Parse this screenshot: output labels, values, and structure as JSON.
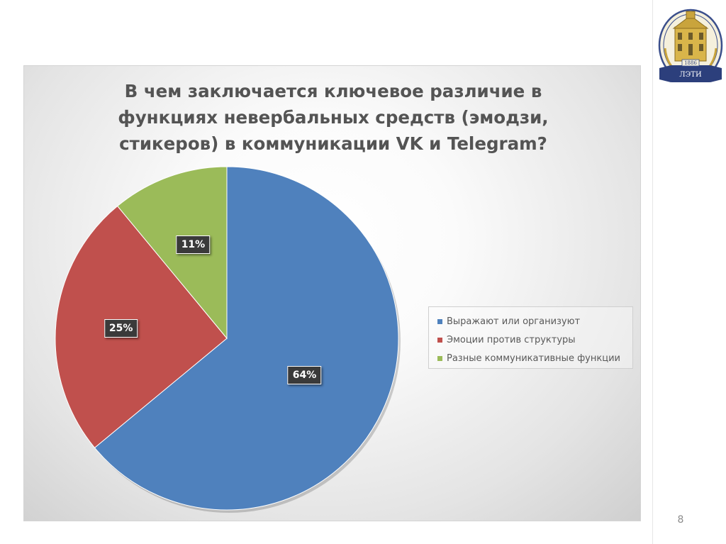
{
  "slide": {
    "page_number": "8"
  },
  "logo": {
    "year": "1886",
    "name": "ЛЭТИ"
  },
  "chart_data": {
    "type": "pie",
    "title": "В чем заключается ключевое различие в функциях невербальных средств (эмодзи, стикеров) в коммуникации VK и Telegram?",
    "categories": [
      "Выражают или организуют",
      "Эмоции против структуры",
      "Разные коммуникативные функции"
    ],
    "values": [
      64,
      25,
      11
    ],
    "data_labels": [
      "64%",
      "25%",
      "11%"
    ],
    "colors": [
      "#4f81bd",
      "#c0504d",
      "#9bbb59"
    ],
    "start_angle_deg": 0,
    "direction": "clockwise",
    "legend_position": "right"
  },
  "legend": {
    "items": [
      {
        "label": "Выражают или организуют",
        "color": "#4f81bd"
      },
      {
        "label": "Эмоции против структуры",
        "color": "#c0504d"
      },
      {
        "label": "Разные коммуникативные функции",
        "color": "#9bbb59"
      }
    ]
  }
}
